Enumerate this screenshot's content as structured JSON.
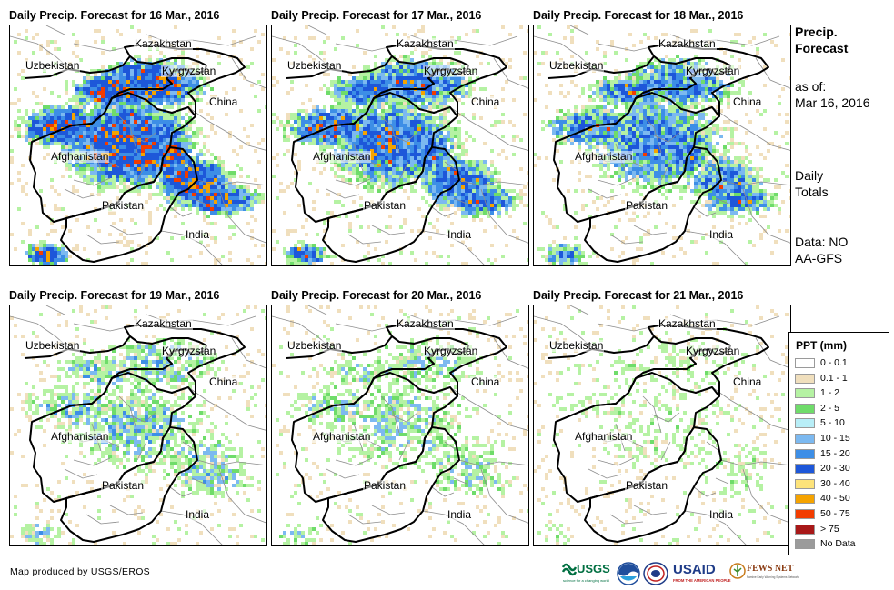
{
  "panels": [
    {
      "title": "Daily Precip. Forecast for 16 Mar., 2016",
      "intensity": 1.0
    },
    {
      "title": "Daily Precip. Forecast for 17 Mar., 2016",
      "intensity": 0.85
    },
    {
      "title": "Daily Precip. Forecast for 18 Mar., 2016",
      "intensity": 0.75
    },
    {
      "title": "Daily Precip. Forecast for 19 Mar., 2016",
      "intensity": 0.45
    },
    {
      "title": "Daily Precip. Forecast for 20 Mar., 2016",
      "intensity": 0.35
    },
    {
      "title": "Daily Precip. Forecast for 21 Mar., 2016",
      "intensity": 0.15
    }
  ],
  "country_labels": {
    "kazakhstan": "Kazakhstan",
    "uzbekistan": "Uzbekistan",
    "kyrgyzstan": "Kyrgyzstan",
    "china": "China",
    "afghanistan": "Afghanistan",
    "pakistan": "Pakistan",
    "india": "India"
  },
  "sidebar": {
    "title": "Precip. Forecast",
    "as_of_label": "as of:",
    "as_of_date": "Mar 16, 2016",
    "totals": "Daily Totals",
    "data_source": "Data: NOAA-GFS"
  },
  "legend": {
    "title": "PPT (mm)",
    "items": [
      {
        "label": "0 - 0.1",
        "color": "#ffffff"
      },
      {
        "label": "0.1 - 1",
        "color": "#f0dfbd"
      },
      {
        "label": "1 - 2",
        "color": "#b5f2a3"
      },
      {
        "label": "2 - 5",
        "color": "#6fdc6a"
      },
      {
        "label": "5 - 10",
        "color": "#b8eef7"
      },
      {
        "label": "10 - 15",
        "color": "#7cb9f0"
      },
      {
        "label": "15 - 20",
        "color": "#3d8ee6"
      },
      {
        "label": "20 - 30",
        "color": "#1d57d9"
      },
      {
        "label": "30 - 40",
        "color": "#fde37a"
      },
      {
        "label": "40 - 50",
        "color": "#f5a300"
      },
      {
        "label": "50 - 75",
        "color": "#f23c00"
      },
      {
        "label": "> 75",
        "color": "#a81818"
      },
      {
        "label": "No Data",
        "color": "#9b9b9b"
      }
    ]
  },
  "credit": "Map produced by USGS/EROS",
  "logos": {
    "usgs": "USGS",
    "usgs_tagline": "science for a changing world",
    "noaa": "NOAA",
    "usaid": "USAID",
    "usaid_tagline": "FROM THE AMERICAN PEOPLE",
    "fewsnet": "FEWS NET",
    "fewsnet_tagline": "Famine Early Warning Systems Network"
  }
}
